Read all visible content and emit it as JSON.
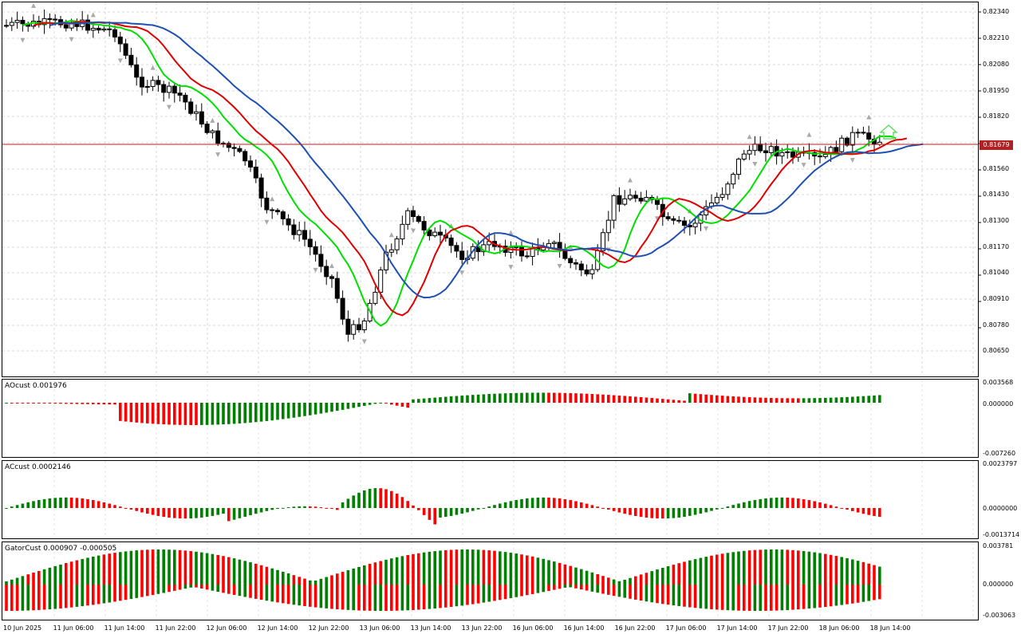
{
  "main": {
    "price_labels": [
      "0.82340",
      "0.82210",
      "0.82080",
      "0.81950",
      "0.81820",
      "0.81560",
      "0.81430",
      "0.81300",
      "0.81170",
      "0.81040",
      "0.80910",
      "0.80780",
      "0.80650"
    ],
    "current_price": "0.81679"
  },
  "ao": {
    "title": "AOcust 0.001976",
    "scale_top": "0.003568",
    "scale_mid": "0.000000",
    "scale_bottom": "-0.007260"
  },
  "ac": {
    "title": "ACcust 0.0002146",
    "scale_top": "0.0023797",
    "scale_mid": "0.0000000",
    "scale_bottom": "-0.0013714"
  },
  "gator": {
    "title": "GatorCust 0.000907 -0.000505",
    "scale_top": "0.003781",
    "scale_mid": "0.000000",
    "scale_bottom": "-0.003063"
  },
  "time_axis": [
    "10 Jun 2025",
    "11 Jun 06:00",
    "11 Jun 14:00",
    "11 Jun 22:00",
    "12 Jun 06:00",
    "12 Jun 14:00",
    "12 Jun 22:00",
    "13 Jun 06:00",
    "13 Jun 14:00",
    "13 Jun 22:00",
    "16 Jun 06:00",
    "16 Jun 14:00",
    "16 Jun 22:00",
    "17 Jun 06:00",
    "17 Jun 14:00",
    "17 Jun 22:00",
    "18 Jun 06:00",
    "18 Jun 14:00"
  ],
  "colors": {
    "bull": "#008000",
    "bear": "#ff0000",
    "lips": "#00e000",
    "teeth": "#e00000",
    "jaw": "#1e50b4",
    "current_price": "#b22222",
    "arrow": "#66dd66"
  },
  "icons": {
    "fractal_marker": "small-triangle-icon",
    "signal_arrow": "up-arrow-icon"
  }
}
